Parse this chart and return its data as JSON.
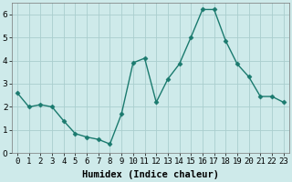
{
  "xlabel": "Humidex (Indice chaleur)",
  "x_values": [
    0,
    1,
    2,
    3,
    4,
    5,
    6,
    7,
    8,
    9,
    10,
    11,
    12,
    13,
    14,
    15,
    16,
    17,
    18,
    19,
    20,
    21,
    22,
    23
  ],
  "y_values": [
    2.6,
    2.0,
    2.1,
    2.0,
    1.4,
    0.85,
    0.7,
    0.6,
    0.4,
    1.7,
    3.9,
    4.1,
    2.2,
    3.2,
    3.85,
    5.0,
    6.2,
    6.2,
    4.85,
    3.85,
    3.3,
    2.45,
    2.45,
    2.2
  ],
  "line_color": "#1a7a6e",
  "marker": "D",
  "marker_size": 2.5,
  "bg_color": "#ceeaea",
  "grid_color": "#aacece",
  "ylim": [
    0,
    6.5
  ],
  "xlim": [
    -0.5,
    23.5
  ],
  "yticks": [
    0,
    1,
    2,
    3,
    4,
    5,
    6
  ],
  "xtick_labels": [
    "0",
    "1",
    "2",
    "3",
    "4",
    "5",
    "6",
    "7",
    "8",
    "9",
    "10",
    "11",
    "12",
    "13",
    "14",
    "15",
    "16",
    "17",
    "18",
    "19",
    "20",
    "21",
    "22",
    "23"
  ],
  "tick_fontsize": 6.5,
  "xlabel_fontsize": 7.5,
  "linewidth": 1.0
}
